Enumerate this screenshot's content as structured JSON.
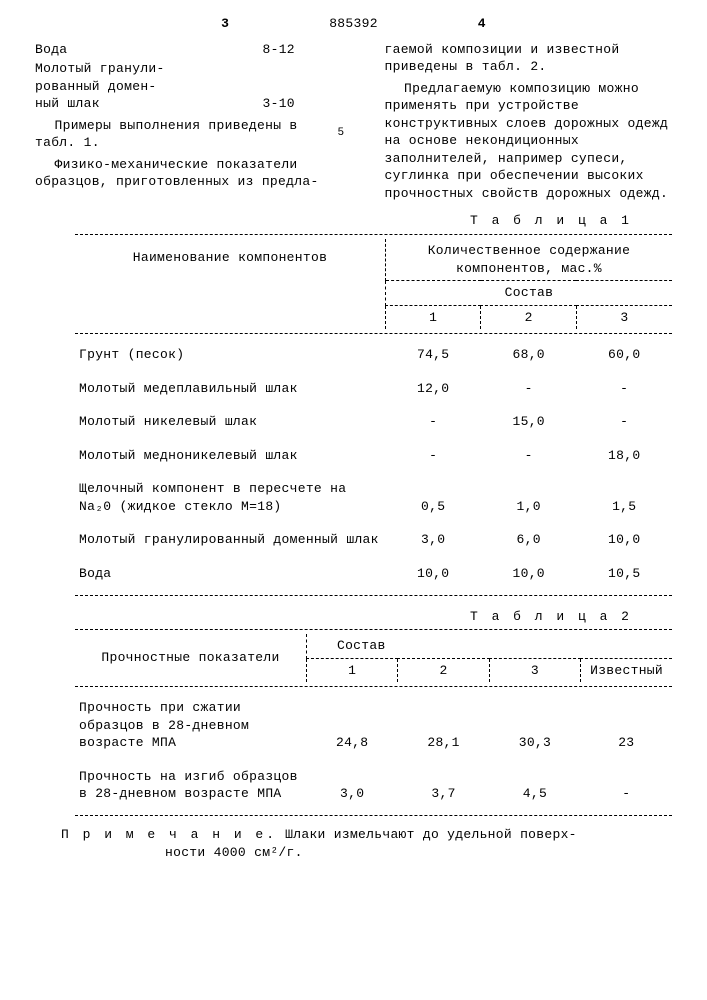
{
  "header": {
    "page_left": "3",
    "doc_number": "885392",
    "page_right": "4",
    "margin_5": "5"
  },
  "left_col": {
    "defs": [
      {
        "label": "Вода",
        "value": "8-12"
      },
      {
        "label": "Молотый гранули-\nрованный домен-\nный шлак",
        "value": "3-10"
      }
    ],
    "para1": "Примеры выполнения приведены в табл. 1.",
    "para2": "Физико-механические показатели образцов, приготовленных из предла-"
  },
  "right_col": {
    "para1": "гаемой композиции и известной приведены в табл. 2.",
    "para2": "Предлагаемую композицию можно применять при устройстве конструктивных слоев дорожных одежд на основе некондиционных заполнителей, например супеси, суглинка при обеспечении высоких прочностных свойств дорожных одежд."
  },
  "table1": {
    "title": "Т а б л и ц а  1",
    "header_name": "Наименование компонентов",
    "header_qty": "Количественное содержание компонентов, мас.%",
    "header_comp": "Состав",
    "cols": [
      "1",
      "2",
      "3"
    ],
    "rows": [
      {
        "name": "Грунт (песок)",
        "v": [
          "74,5",
          "68,0",
          "60,0"
        ]
      },
      {
        "name": "Молотый медеплавильный шлак",
        "v": [
          "12,0",
          "-",
          "-"
        ]
      },
      {
        "name": "Молотый никелевый шлак",
        "v": [
          "-",
          "15,0",
          "-"
        ]
      },
      {
        "name": "Молотый медноникелевый шлак",
        "v": [
          "-",
          "-",
          "18,0"
        ]
      },
      {
        "name": "Щелочный компонент в пересчете на Na₂0 (жидкое стекло М=18)",
        "v": [
          "0,5",
          "1,0",
          "1,5"
        ]
      },
      {
        "name": "Молотый гранулированный доменный шлак",
        "v": [
          "3,0",
          "6,0",
          "10,0"
        ]
      },
      {
        "name": "Вода",
        "v": [
          "10,0",
          "10,0",
          "10,5"
        ]
      }
    ]
  },
  "table2": {
    "title": "Т а б л и ц а  2",
    "header_name": "Прочностные показатели",
    "header_comp": "Состав",
    "cols": [
      "1",
      "2",
      "3",
      "Известный"
    ],
    "rows": [
      {
        "name": "Прочность при сжатии образцов в 28-дневном возрасте МПА",
        "v": [
          "24,8",
          "28,1",
          "30,3",
          "23"
        ]
      },
      {
        "name": "Прочность на изгиб образцов в 28-дневном возрасте МПА",
        "v": [
          "3,0",
          "3,7",
          "4,5",
          "-"
        ]
      }
    ]
  },
  "note": {
    "label": "П р и м е ч а н и е.",
    "text": "Шлаки измельчают до удельной поверхности 4000 см²/г."
  }
}
